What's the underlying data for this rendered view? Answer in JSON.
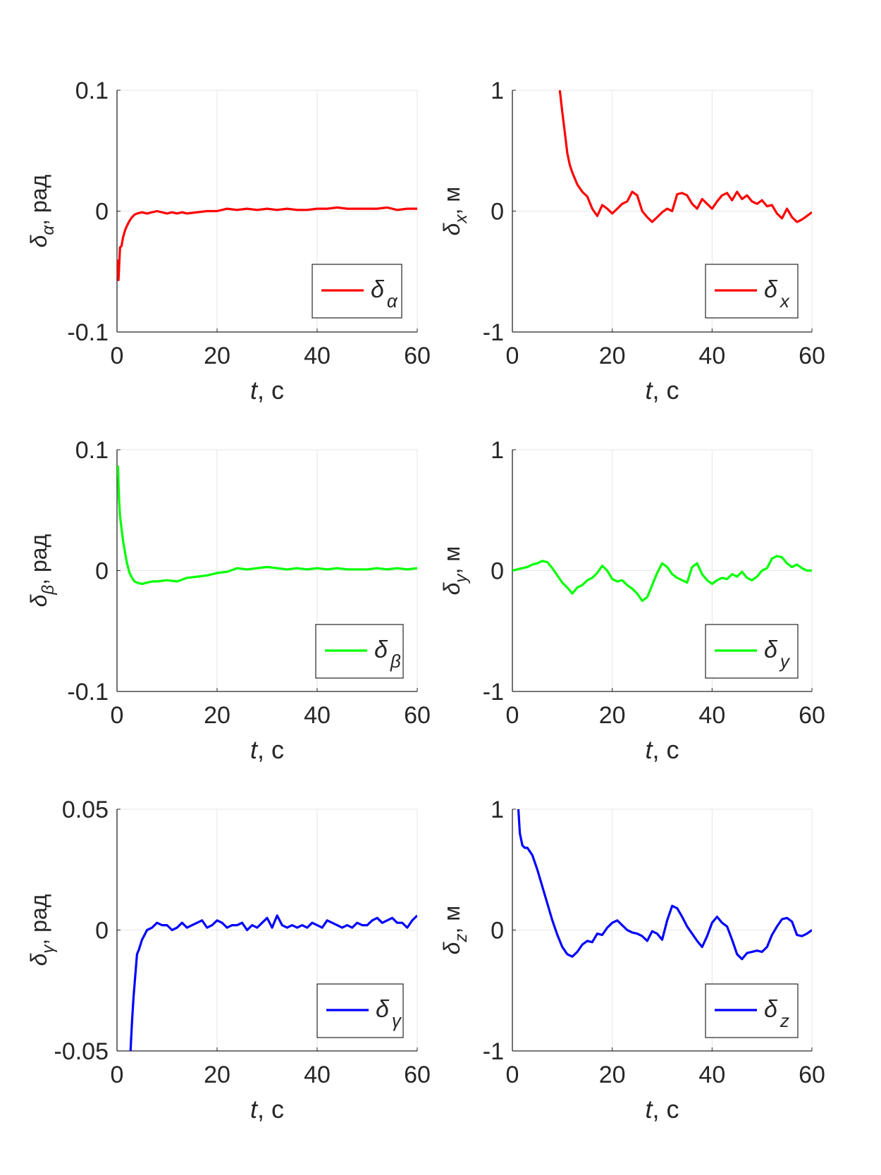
{
  "figure": {
    "xlabel_var": "t",
    "xlabel_unit": ", c"
  },
  "chart_data": [
    {
      "type": "line",
      "ylabel_sym": "δ",
      "ylabel_sub": "α",
      "ylabel_unit": ", рад",
      "xlim": [
        0,
        60
      ],
      "ylim": [
        -0.1,
        0.1
      ],
      "xticks": [
        0,
        20,
        40,
        60
      ],
      "xtick_labels": [
        "0",
        "20",
        "40",
        "60"
      ],
      "yticks": [
        -0.1,
        0,
        0.1
      ],
      "ytick_labels": [
        "-0.1",
        "0",
        "0.1"
      ],
      "grid": true,
      "legend_position": "bottom-right",
      "series": [
        {
          "name_sym": "δ",
          "name_sub": "α",
          "color": "#ff0000",
          "x": [
            0,
            0.3,
            0.6,
            0.9,
            1.2,
            1.6,
            2,
            2.5,
            3,
            3.5,
            4,
            5,
            6,
            7,
            8,
            9,
            10,
            11,
            12,
            13,
            14,
            16,
            18,
            20,
            22,
            24,
            26,
            28,
            30,
            32,
            34,
            36,
            38,
            40,
            42,
            44,
            46,
            48,
            50,
            52,
            54,
            56,
            58,
            60
          ],
          "y": [
            -0.04,
            -0.057,
            -0.03,
            -0.029,
            -0.022,
            -0.016,
            -0.012,
            -0.008,
            -0.005,
            -0.003,
            -0.002,
            -0.001,
            -0.002,
            -0.001,
            0.0,
            -0.001,
            -0.002,
            -0.001,
            -0.002,
            -0.001,
            -0.002,
            -0.001,
            0.0,
            0.0,
            0.002,
            0.001,
            0.002,
            0.001,
            0.002,
            0.001,
            0.002,
            0.001,
            0.001,
            0.002,
            0.002,
            0.003,
            0.002,
            0.002,
            0.002,
            0.002,
            0.003,
            0.001,
            0.002,
            0.002
          ]
        }
      ]
    },
    {
      "type": "line",
      "ylabel_sym": "δ",
      "ylabel_sub": "x",
      "ylabel_unit": ", м",
      "xlim": [
        0,
        60
      ],
      "ylim": [
        -1,
        1
      ],
      "xticks": [
        0,
        20,
        40,
        60
      ],
      "xtick_labels": [
        "0",
        "20",
        "40",
        "60"
      ],
      "yticks": [
        -1,
        0,
        1
      ],
      "ytick_labels": [
        "-1",
        "0",
        "1"
      ],
      "grid": true,
      "legend_position": "bottom-right",
      "series": [
        {
          "name_sym": "δ",
          "name_sub": "x",
          "color": "#ff0000",
          "x": [
            9.5,
            10,
            10.5,
            11,
            11.5,
            12,
            13,
            14,
            15,
            16,
            17,
            18,
            19,
            20,
            21,
            22,
            23,
            24,
            25,
            26,
            27,
            28,
            29,
            30,
            31,
            32,
            33,
            34,
            35,
            36,
            37,
            38,
            39,
            40,
            41,
            42,
            43,
            44,
            45,
            46,
            47,
            48,
            49,
            50,
            51,
            52,
            53,
            54,
            55,
            56,
            57,
            58,
            59,
            60
          ],
          "y": [
            1.0,
            0.82,
            0.65,
            0.48,
            0.38,
            0.32,
            0.22,
            0.16,
            0.12,
            0.02,
            -0.04,
            0.05,
            0.02,
            -0.02,
            0.02,
            0.06,
            0.08,
            0.16,
            0.13,
            0.0,
            -0.05,
            -0.09,
            -0.05,
            -0.01,
            0.02,
            0.0,
            0.14,
            0.15,
            0.13,
            0.06,
            0.02,
            0.1,
            0.06,
            0.02,
            0.08,
            0.13,
            0.15,
            0.09,
            0.16,
            0.1,
            0.13,
            0.08,
            0.06,
            0.09,
            0.04,
            0.05,
            -0.02,
            -0.06,
            0.02,
            -0.05,
            -0.09,
            -0.07,
            -0.04,
            -0.01
          ]
        }
      ]
    },
    {
      "type": "line",
      "ylabel_sym": "δ",
      "ylabel_sub": "β",
      "ylabel_unit": ", рад",
      "xlim": [
        0,
        60
      ],
      "ylim": [
        -0.1,
        0.1
      ],
      "xticks": [
        0,
        20,
        40,
        60
      ],
      "xtick_labels": [
        "0",
        "20",
        "40",
        "60"
      ],
      "yticks": [
        -0.1,
        0,
        0.1
      ],
      "ytick_labels": [
        "-0.1",
        "0",
        "0.1"
      ],
      "grid": true,
      "legend_position": "bottom-right",
      "series": [
        {
          "name_sym": "δ",
          "name_sub": "β",
          "color": "#00ff00",
          "x": [
            0,
            0.2,
            0.4,
            0.6,
            0.9,
            1.2,
            1.6,
            2,
            2.5,
            3,
            3.5,
            4,
            5,
            6,
            7,
            8,
            10,
            12,
            14,
            16,
            18,
            20,
            22,
            24,
            26,
            28,
            30,
            32,
            34,
            36,
            38,
            40,
            42,
            44,
            46,
            48,
            50,
            52,
            54,
            56,
            58,
            60
          ],
          "y": [
            0.08,
            0.086,
            0.06,
            0.045,
            0.035,
            0.025,
            0.015,
            0.006,
            -0.002,
            -0.006,
            -0.009,
            -0.01,
            -0.011,
            -0.01,
            -0.009,
            -0.009,
            -0.008,
            -0.009,
            -0.006,
            -0.005,
            -0.004,
            -0.002,
            -0.001,
            0.002,
            0.001,
            0.002,
            0.003,
            0.002,
            0.001,
            0.002,
            0.001,
            0.002,
            0.001,
            0.002,
            0.001,
            0.001,
            0.001,
            0.002,
            0.001,
            0.002,
            0.001,
            0.002
          ]
        }
      ]
    },
    {
      "type": "line",
      "ylabel_sym": "δ",
      "ylabel_sub": "y",
      "ylabel_unit": ", м",
      "xlim": [
        0,
        60
      ],
      "ylim": [
        -1,
        1
      ],
      "xticks": [
        0,
        20,
        40,
        60
      ],
      "xtick_labels": [
        "0",
        "20",
        "40",
        "60"
      ],
      "yticks": [
        -1,
        0,
        1
      ],
      "ytick_labels": [
        "-1",
        "0",
        "1"
      ],
      "grid": true,
      "legend_position": "bottom-right",
      "series": [
        {
          "name_sym": "δ",
          "name_sub": "y",
          "color": "#00ff00",
          "x": [
            0,
            1,
            2,
            3,
            4,
            5,
            6,
            7,
            8,
            9,
            10,
            11,
            12,
            13,
            14,
            15,
            16,
            17,
            18,
            19,
            20,
            21,
            22,
            23,
            24,
            25,
            26,
            27,
            28,
            29,
            30,
            31,
            32,
            33,
            34,
            35,
            36,
            37,
            38,
            39,
            40,
            41,
            42,
            43,
            44,
            45,
            46,
            47,
            48,
            49,
            50,
            51,
            52,
            53,
            54,
            55,
            56,
            57,
            58,
            59,
            60
          ],
          "y": [
            0.0,
            0.01,
            0.02,
            0.03,
            0.05,
            0.06,
            0.08,
            0.07,
            0.02,
            -0.04,
            -0.1,
            -0.14,
            -0.19,
            -0.14,
            -0.12,
            -0.08,
            -0.06,
            -0.02,
            0.04,
            0.0,
            -0.07,
            -0.09,
            -0.08,
            -0.12,
            -0.15,
            -0.19,
            -0.25,
            -0.22,
            -0.12,
            -0.02,
            0.06,
            0.03,
            -0.03,
            -0.06,
            -0.08,
            -0.1,
            0.03,
            0.06,
            -0.03,
            -0.08,
            -0.11,
            -0.08,
            -0.06,
            -0.07,
            -0.03,
            -0.05,
            -0.01,
            -0.06,
            -0.08,
            -0.05,
            0.0,
            0.02,
            0.1,
            0.12,
            0.11,
            0.06,
            0.03,
            0.05,
            0.02,
            0.0,
            0.0
          ]
        }
      ]
    },
    {
      "type": "line",
      "ylabel_sym": "δ",
      "ylabel_sub": "γ",
      "ylabel_unit": ", рад",
      "xlim": [
        0,
        60
      ],
      "ylim": [
        -0.05,
        0.05
      ],
      "xticks": [
        0,
        20,
        40,
        60
      ],
      "xtick_labels": [
        "0",
        "20",
        "40",
        "60"
      ],
      "yticks": [
        -0.05,
        0,
        0.05
      ],
      "ytick_labels": [
        "-0.05",
        "0",
        "0.05"
      ],
      "grid": true,
      "legend_position": "bottom-right",
      "series": [
        {
          "name_sym": "δ",
          "name_sub": "γ",
          "color": "#0000ff",
          "x": [
            2.7,
            3,
            3.3,
            3.6,
            4,
            4.4,
            5,
            5.5,
            6,
            7,
            8,
            9,
            10,
            11,
            12,
            13,
            14,
            15,
            16,
            17,
            18,
            19,
            20,
            21,
            22,
            23,
            24,
            25,
            26,
            27,
            28,
            29,
            30,
            31,
            32,
            33,
            34,
            35,
            36,
            37,
            38,
            39,
            40,
            41,
            42,
            43,
            44,
            45,
            46,
            47,
            48,
            49,
            50,
            51,
            52,
            53,
            54,
            55,
            56,
            57,
            58,
            59,
            60
          ],
          "y": [
            -0.05,
            -0.038,
            -0.028,
            -0.02,
            -0.01,
            -0.008,
            -0.004,
            -0.002,
            0.0,
            0.001,
            0.003,
            0.002,
            0.002,
            0.0,
            0.001,
            0.003,
            0.001,
            0.002,
            0.003,
            0.004,
            0.001,
            0.002,
            0.004,
            0.003,
            0.001,
            0.002,
            0.002,
            0.003,
            0.0,
            0.002,
            0.001,
            0.003,
            0.005,
            0.001,
            0.006,
            0.002,
            0.001,
            0.002,
            0.001,
            0.002,
            0.001,
            0.003,
            0.002,
            0.001,
            0.004,
            0.003,
            0.002,
            0.001,
            0.002,
            0.001,
            0.003,
            0.002,
            0.002,
            0.004,
            0.005,
            0.003,
            0.004,
            0.005,
            0.003,
            0.003,
            0.001,
            0.004,
            0.006
          ]
        }
      ]
    },
    {
      "type": "line",
      "ylabel_sym": "δ",
      "ylabel_sub": "z",
      "ylabel_unit": ", м",
      "xlim": [
        0,
        60
      ],
      "ylim": [
        -1,
        1
      ],
      "xticks": [
        0,
        20,
        40,
        60
      ],
      "xtick_labels": [
        "0",
        "20",
        "40",
        "60"
      ],
      "yticks": [
        -1,
        0,
        1
      ],
      "ytick_labels": [
        "-1",
        "0",
        "1"
      ],
      "grid": true,
      "legend_position": "bottom-right",
      "series": [
        {
          "name_sym": "δ",
          "name_sub": "z",
          "color": "#0000ff",
          "x": [
            1.2,
            1.5,
            2,
            2.5,
            3,
            4,
            5,
            6,
            7,
            8,
            9,
            10,
            11,
            12,
            13,
            14,
            15,
            16,
            17,
            18,
            19,
            20,
            21,
            22,
            23,
            24,
            25,
            26,
            27,
            28,
            29,
            30,
            31,
            32,
            33,
            34,
            35,
            36,
            37,
            38,
            39,
            40,
            41,
            42,
            43,
            44,
            45,
            46,
            47,
            48,
            49,
            50,
            51,
            52,
            53,
            54,
            55,
            56,
            57,
            58,
            59,
            60
          ],
          "y": [
            1.0,
            0.8,
            0.7,
            0.68,
            0.68,
            0.62,
            0.5,
            0.36,
            0.22,
            0.08,
            -0.04,
            -0.14,
            -0.2,
            -0.22,
            -0.18,
            -0.12,
            -0.09,
            -0.1,
            -0.03,
            -0.04,
            0.02,
            0.06,
            0.08,
            0.04,
            0.0,
            -0.02,
            -0.03,
            -0.05,
            -0.09,
            -0.01,
            -0.03,
            -0.08,
            0.08,
            0.2,
            0.18,
            0.11,
            0.03,
            -0.03,
            -0.09,
            -0.14,
            -0.05,
            0.06,
            0.11,
            0.06,
            0.03,
            -0.08,
            -0.2,
            -0.24,
            -0.19,
            -0.18,
            -0.17,
            -0.18,
            -0.14,
            -0.04,
            0.03,
            0.09,
            0.1,
            0.07,
            -0.04,
            -0.05,
            -0.03,
            0.0
          ]
        }
      ]
    }
  ]
}
